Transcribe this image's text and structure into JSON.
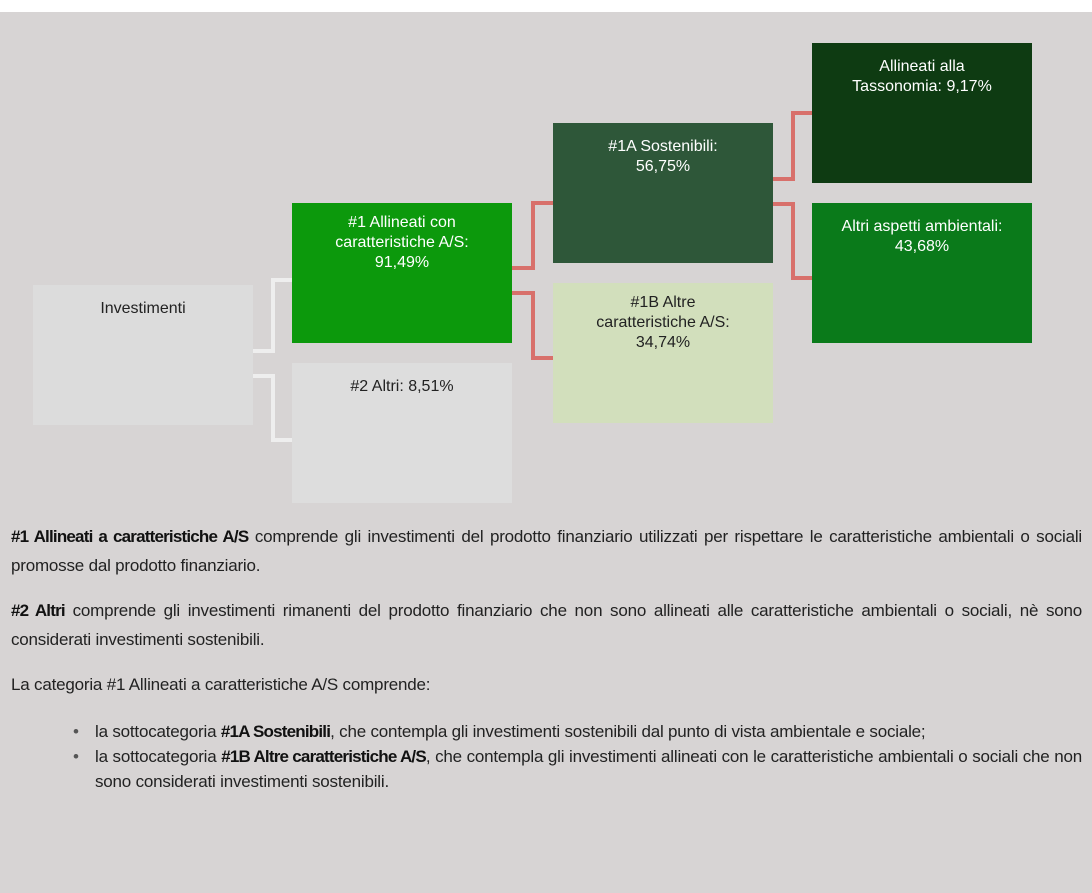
{
  "nodes": [
    {
      "label": [
        "Investimenti"
      ]
    },
    {
      "label": [
        "#1 Allineati con",
        "caratteristiche A/S:",
        "91,49%"
      ]
    },
    {
      "label": [
        "#2 Altri: 8,51%"
      ]
    },
    {
      "label": [
        "#1A Sostenibili:",
        "56,75%"
      ]
    },
    {
      "label": [
        "#1B Altre",
        "caratteristiche A/S:",
        "34,74%"
      ]
    },
    {
      "label": [
        "Allineati alla",
        "Tassonomia: 9,17%"
      ]
    },
    {
      "label": [
        "Altri aspetti ambientali:",
        "43,68%"
      ]
    }
  ],
  "paragraphs": [
    {
      "bold": "#1 Allineati a caratteristiche A/S",
      "text": "comprende gli investimenti del prodotto finanziario utilizzati per rispettare le caratteristiche ambientali o sociali promosse dal prodotto finanziario."
    },
    {
      "bold": "#2 Altri",
      "text": "comprende gli investimenti rimanenti del prodotto finanziario che non sono allineati alle caratteristiche ambientali o sociali, nè sono considerati investimenti sostenibili."
    },
    {
      "text": "La categoria #1 Allineati a caratteristiche A/S comprende:"
    }
  ],
  "bullets": [
    {
      "before": "la sottocategoria",
      "bold": "#1A Sostenibili",
      "after": ", che contempla gli investimenti sostenibili dal punto di vista ambientale e sociale;"
    },
    {
      "before": "la sottocategoria",
      "bold": "#1B Altre caratteristiche A/S",
      "after": ", che contempla gli investimenti allineati con le caratteristiche ambientali o sociali che non sono considerati investimenti sostenibili."
    }
  ]
}
